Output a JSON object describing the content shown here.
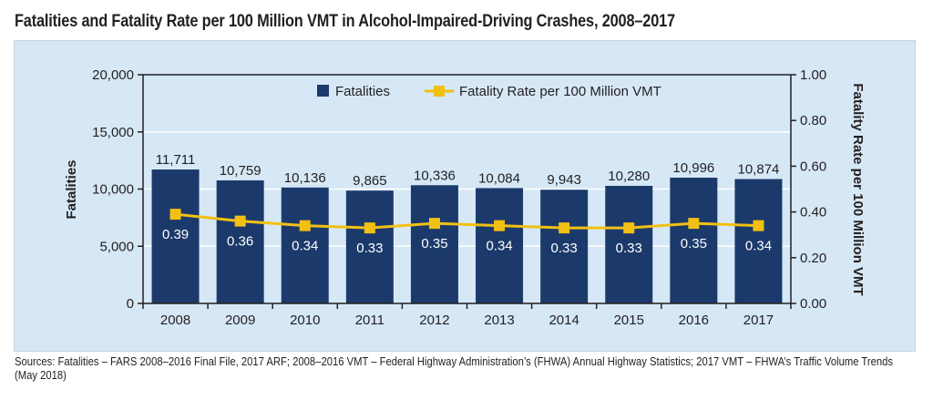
{
  "title": "Fatalities and Fatality Rate per 100 Million VMT in Alcohol-Impaired-Driving Crashes, 2008–2017",
  "sources": "Sources: Fatalities – FARS 2008–2016 Final File, 2017 ARF; 2008–2016 VMT – Federal Highway Administration’s (FHWA) Annual Highway Statistics; 2017 VMT – FHWA’s Traffic Volume Trends (May 2018)",
  "colors": {
    "bar": "#1b3a6b",
    "line": "#f2c013",
    "panel": "#d6e8f6",
    "grid": "#ffffff",
    "axis": "#231f20"
  },
  "chart_data": {
    "type": "bar",
    "title": "Fatalities and Fatality Rate per 100 Million VMT in Alcohol-Impaired-Driving Crashes, 2008–2017",
    "xlabel": "",
    "ylabel": "Fatalities",
    "y2label": "Fatality Rate per 100 Million VMT",
    "categories": [
      "2008",
      "2009",
      "2010",
      "2011",
      "2012",
      "2013",
      "2014",
      "2015",
      "2016",
      "2017"
    ],
    "series": [
      {
        "name": "Fatalities",
        "type": "bar",
        "axis": "left",
        "values": [
          11711,
          10759,
          10136,
          9865,
          10336,
          10084,
          9943,
          10280,
          10996,
          10874
        ],
        "labels": [
          "11,711",
          "10,759",
          "10,136",
          "9,865",
          "10,336",
          "10,084",
          "9,943",
          "10,280",
          "10,996",
          "10,874"
        ]
      },
      {
        "name": "Fatality Rate per 100 Million VMT",
        "type": "line",
        "axis": "right",
        "values": [
          0.39,
          0.36,
          0.34,
          0.33,
          0.35,
          0.34,
          0.33,
          0.33,
          0.35,
          0.34
        ],
        "labels": [
          "0.39",
          "0.36",
          "0.34",
          "0.33",
          "0.35",
          "0.34",
          "0.33",
          "0.33",
          "0.35",
          "0.34"
        ]
      }
    ],
    "ylim": [
      0,
      20000
    ],
    "y2lim": [
      0,
      1.0
    ],
    "yticks": [
      "0",
      "5,000",
      "10,000",
      "15,000",
      "20,000"
    ],
    "y2ticks": [
      "0.00",
      "0.20",
      "0.40",
      "0.60",
      "0.80",
      "1.00"
    ],
    "grid": true,
    "legend": {
      "position": "top-center",
      "entries": [
        "Fatalities",
        "Fatality Rate per 100 Million VMT"
      ]
    }
  }
}
